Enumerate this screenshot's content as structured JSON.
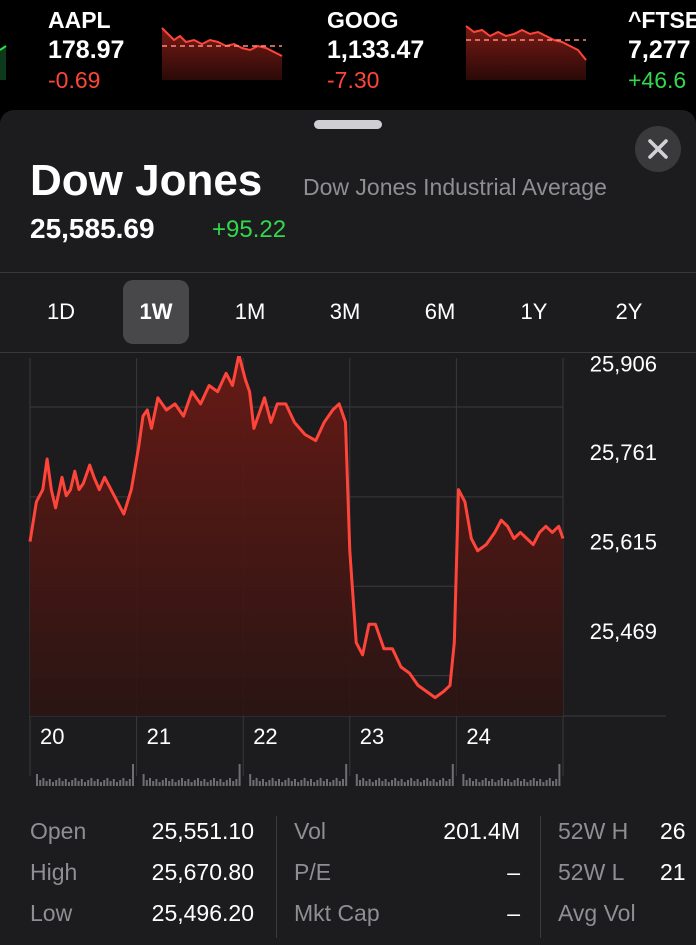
{
  "tickers": [
    {
      "symbol": "AAPL",
      "price": "178.97",
      "change": "-0.69",
      "direction": "down"
    },
    {
      "symbol": "GOOG",
      "price": "1,133.47",
      "change": "-7.30",
      "direction": "down"
    },
    {
      "symbol": "^FTSE",
      "price": "7,277",
      "change": "+46.6",
      "direction": "up"
    }
  ],
  "index": {
    "name": "Dow Jones",
    "full_name": "Dow Jones Industrial Average",
    "price": "25,585.69",
    "change": "+95.22"
  },
  "range_tabs": [
    {
      "label": "1D",
      "active": false
    },
    {
      "label": "1W",
      "active": true
    },
    {
      "label": "1M",
      "active": false
    },
    {
      "label": "3M",
      "active": false
    },
    {
      "label": "6M",
      "active": false
    },
    {
      "label": "1Y",
      "active": false
    },
    {
      "label": "2Y",
      "active": false
    }
  ],
  "chart_data": {
    "type": "area",
    "x_tick_labels": [
      "20",
      "21",
      "22",
      "23",
      "24"
    ],
    "y_tick_labels": [
      "25,906",
      "25,761",
      "25,615",
      "25,469"
    ],
    "y_ticks": [
      25906,
      25761,
      25615,
      25469
    ],
    "ylim": [
      25330,
      25915
    ],
    "xlim": [
      0,
      5
    ],
    "grid": true,
    "line_color": "#ff453a",
    "series": [
      {
        "values": [
          [
            0.0,
            25615
          ],
          [
            0.06,
            25680
          ],
          [
            0.12,
            25700
          ],
          [
            0.16,
            25750
          ],
          [
            0.2,
            25700
          ],
          [
            0.24,
            25670
          ],
          [
            0.3,
            25720
          ],
          [
            0.34,
            25690
          ],
          [
            0.38,
            25700
          ],
          [
            0.42,
            25730
          ],
          [
            0.46,
            25700
          ],
          [
            0.5,
            25710
          ],
          [
            0.56,
            25740
          ],
          [
            0.6,
            25720
          ],
          [
            0.65,
            25700
          ],
          [
            0.7,
            25720
          ],
          [
            0.76,
            25700
          ],
          [
            0.82,
            25680
          ],
          [
            0.88,
            25660
          ],
          [
            0.95,
            25700
          ],
          [
            1.02,
            25770
          ],
          [
            1.06,
            25820
          ],
          [
            1.1,
            25830
          ],
          [
            1.14,
            25800
          ],
          [
            1.2,
            25850
          ],
          [
            1.28,
            25830
          ],
          [
            1.36,
            25840
          ],
          [
            1.44,
            25820
          ],
          [
            1.52,
            25860
          ],
          [
            1.6,
            25840
          ],
          [
            1.68,
            25870
          ],
          [
            1.76,
            25860
          ],
          [
            1.84,
            25890
          ],
          [
            1.9,
            25870
          ],
          [
            1.96,
            25920
          ],
          [
            2.02,
            25880
          ],
          [
            2.06,
            25860
          ],
          [
            2.1,
            25800
          ],
          [
            2.16,
            25830
          ],
          [
            2.2,
            25850
          ],
          [
            2.26,
            25810
          ],
          [
            2.32,
            25840
          ],
          [
            2.4,
            25840
          ],
          [
            2.48,
            25810
          ],
          [
            2.58,
            25790
          ],
          [
            2.68,
            25780
          ],
          [
            2.76,
            25810
          ],
          [
            2.84,
            25830
          ],
          [
            2.9,
            25840
          ],
          [
            2.96,
            25810
          ],
          [
            3.0,
            25600
          ],
          [
            3.06,
            25450
          ],
          [
            3.12,
            25430
          ],
          [
            3.18,
            25480
          ],
          [
            3.24,
            25480
          ],
          [
            3.32,
            25440
          ],
          [
            3.4,
            25440
          ],
          [
            3.48,
            25410
          ],
          [
            3.56,
            25400
          ],
          [
            3.64,
            25380
          ],
          [
            3.72,
            25370
          ],
          [
            3.8,
            25360
          ],
          [
            3.88,
            25370
          ],
          [
            3.94,
            25380
          ],
          [
            3.98,
            25450
          ],
          [
            4.02,
            25700
          ],
          [
            4.08,
            25680
          ],
          [
            4.14,
            25620
          ],
          [
            4.2,
            25600
          ],
          [
            4.28,
            25610
          ],
          [
            4.36,
            25630
          ],
          [
            4.42,
            25650
          ],
          [
            4.48,
            25640
          ],
          [
            4.54,
            25620
          ],
          [
            4.6,
            25630
          ],
          [
            4.66,
            25620
          ],
          [
            4.72,
            25610
          ],
          [
            4.78,
            25630
          ],
          [
            4.84,
            25640
          ],
          [
            4.9,
            25630
          ],
          [
            4.96,
            25640
          ],
          [
            5.0,
            25620
          ]
        ]
      }
    ]
  },
  "stats": {
    "col1": [
      {
        "label": "Open",
        "value": "25,551.10"
      },
      {
        "label": "High",
        "value": "25,670.80"
      },
      {
        "label": "Low",
        "value": "25,496.20"
      }
    ],
    "col2": [
      {
        "label": "Vol",
        "value": "201.4M"
      },
      {
        "label": "P/E",
        "value": "–"
      },
      {
        "label": "Mkt Cap",
        "value": "–"
      }
    ],
    "col3": [
      {
        "label": "52W H",
        "value": "26"
      },
      {
        "label": "52W L",
        "value": "21"
      },
      {
        "label": "Avg Vol",
        "value": ""
      }
    ]
  },
  "colors": {
    "negative": "#ff453a",
    "positive": "#32d74b",
    "sheet_bg": "#1c1c1e"
  },
  "icons": {
    "close": "close-icon"
  }
}
